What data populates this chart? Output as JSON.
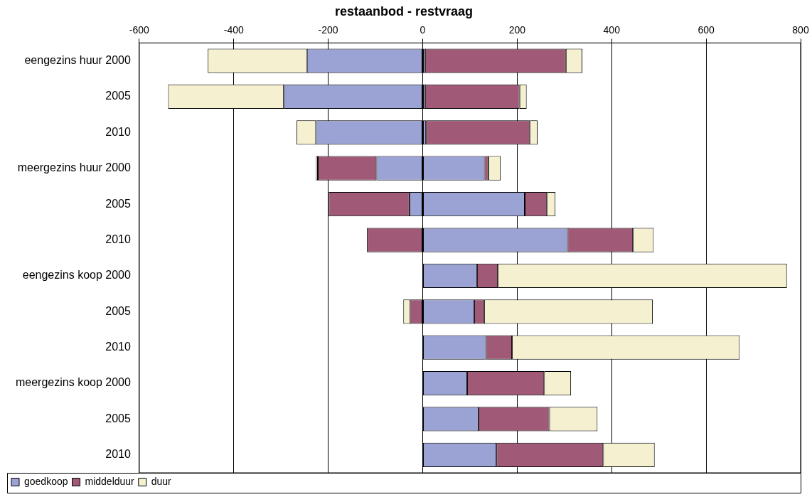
{
  "chart_data": {
    "type": "bar",
    "title": "restaanbod - restvraag",
    "orientation": "horizontal",
    "stacked": true,
    "categories": [
      "eengezins huur 2000",
      "2005",
      "2010",
      "meergezins huur 2000",
      "2005",
      "2010",
      "eengezins koop 2000",
      "2005",
      "2010",
      "meergezins koop 2000",
      "2005",
      "2010"
    ],
    "series": [
      {
        "name": "goedkoop",
        "color": "#9ba3d4",
        "values": [
          -245,
          -294,
          -226,
          -98,
          -28,
          0,
          0,
          0,
          0,
          0,
          0,
          0
        ]
      },
      {
        "name": "middelduur",
        "color": "#a05a78",
        "values": [
          0,
          0,
          0,
          -124,
          -171,
          -118,
          0,
          -27,
          0,
          0,
          0,
          0
        ]
      },
      {
        "name": "duur",
        "color": "#f4f0d0",
        "values": [
          -210,
          -245,
          -41,
          -4,
          0,
          0,
          0,
          -14,
          0,
          0,
          0,
          0
        ]
      },
      {
        "color": "#9ba3d4",
        "values": [
          5,
          5,
          7,
          131,
          216,
          307,
          115,
          109,
          134,
          94,
          118,
          156
        ]
      },
      {
        "color": "#a05a78",
        "values": [
          298,
          200,
          220,
          8,
          47,
          138,
          44,
          21,
          55,
          163,
          150,
          226
        ]
      },
      {
        "color": "#f4f0d0",
        "values": [
          35,
          15,
          16,
          26,
          18,
          44,
          612,
          357,
          482,
          57,
          102,
          109
        ]
      }
    ],
    "xlim": [
      -600,
      800
    ],
    "xticks": [
      -600,
      -400,
      -200,
      0,
      200,
      400,
      600,
      800
    ],
    "grid": "x",
    "legend": "bottom left"
  }
}
